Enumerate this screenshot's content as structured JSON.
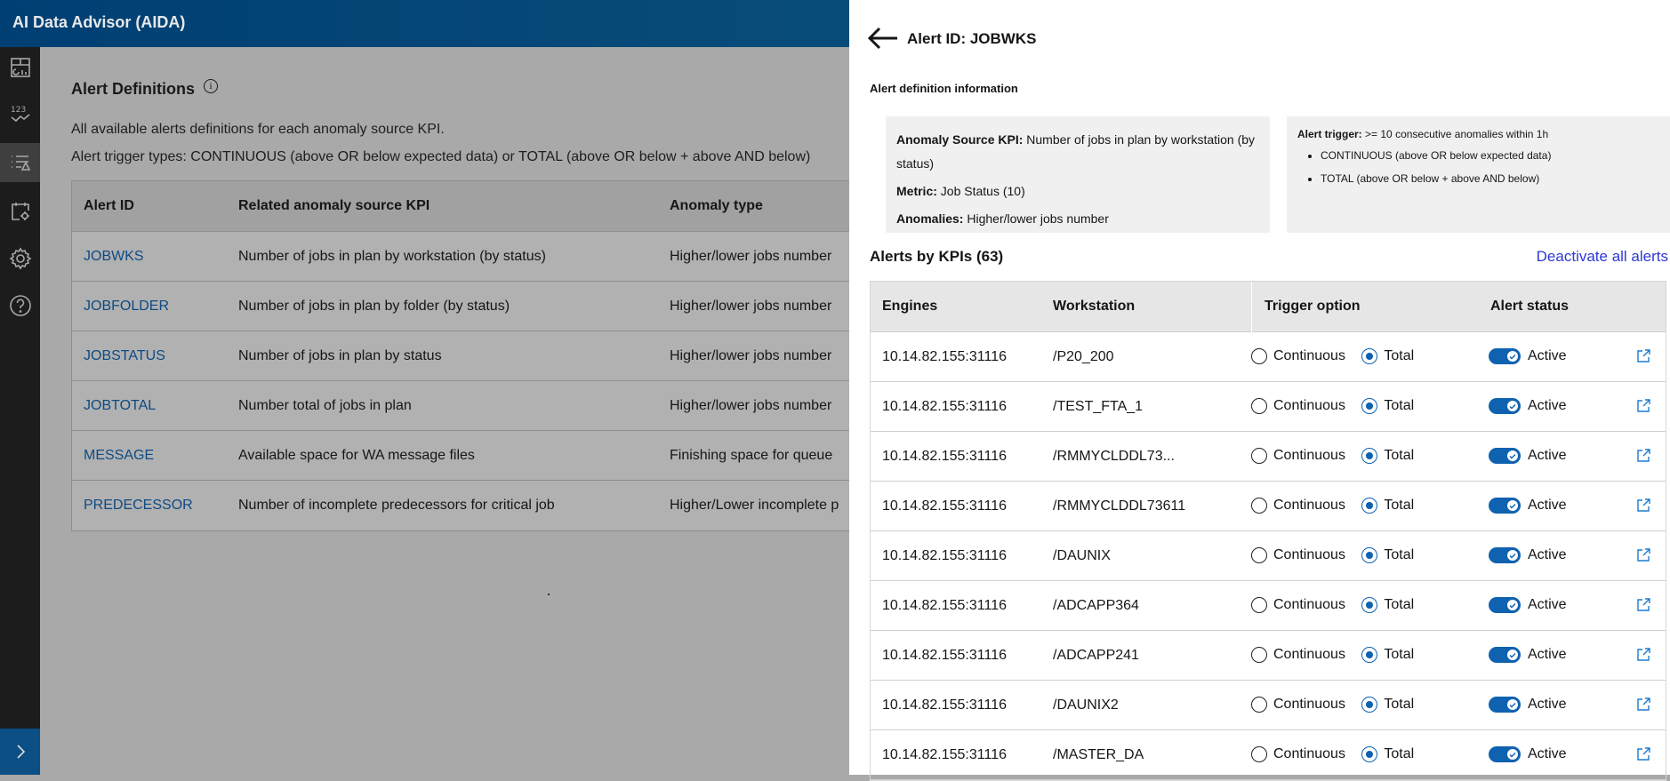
{
  "app": {
    "title": "AI Data Advisor (AIDA)"
  },
  "sidebar": {
    "items": [
      {
        "icon": "dashboard-icon"
      },
      {
        "icon": "kpi-trend-icon"
      },
      {
        "icon": "alert-definitions-icon",
        "active": true
      },
      {
        "icon": "calendar-settings-icon"
      },
      {
        "icon": "gear-icon"
      },
      {
        "icon": "help-icon"
      }
    ],
    "expand_icon": "chevron-right-icon"
  },
  "main": {
    "title": "Alert Definitions",
    "desc1": "All available alerts definitions for each anomaly source KPI.",
    "desc2": "Alert trigger types: CONTINUOUS (above OR below expected data) or TOTAL (above OR below + above AND below)",
    "columns": [
      "Alert ID",
      "Related anomaly source KPI",
      "Anomaly type"
    ],
    "rows": [
      {
        "id": "JOBWKS",
        "kpi": "Number of jobs in plan by workstation (by status)",
        "type": "Higher/lower jobs number"
      },
      {
        "id": "JOBFOLDER",
        "kpi": "Number of jobs in plan by folder (by status)",
        "type": "Higher/lower jobs number"
      },
      {
        "id": "JOBSTATUS",
        "kpi": "Number of jobs in plan by status",
        "type": "Higher/lower jobs number"
      },
      {
        "id": "JOBTOTAL",
        "kpi": "Number total of jobs in plan",
        "type": "Higher/lower jobs number"
      },
      {
        "id": "MESSAGE",
        "kpi": "Available space for WA message files",
        "type": "Finishing space for queue"
      },
      {
        "id": "PREDECESSOR",
        "kpi": "Number of incomplete predecessors for critical job",
        "type": "Higher/Lower incomplete p"
      }
    ]
  },
  "panel": {
    "title": "Alert ID: JOBWKS",
    "def_title": "Alert definition information",
    "kpi_label": "Anomaly Source KPI:",
    "kpi_value": "Number of jobs in plan by workstation (by status)",
    "metric_label": "Metric:",
    "metric_value": "Job Status (10)",
    "anomalies_label": "Anomalies:",
    "anomalies_value": "Higher/lower jobs number",
    "trigger_label": "Alert trigger:",
    "trigger_value": ">= 10 consecutive anomalies within 1h",
    "trigger_items": [
      "CONTINUOUS (above OR below expected data)",
      "TOTAL (above OR below + above AND below)"
    ],
    "alerts_title": "Alerts by KPIs (63)",
    "deactivate": "Deactivate all alerts",
    "columns": [
      "Engines",
      "Workstation",
      "Trigger option",
      "Alert status"
    ],
    "opt_continuous": "Continuous",
    "opt_total": "Total",
    "status": "Active",
    "accent": "#0f62b0",
    "rows": [
      {
        "engine": "10.14.82.155:31116",
        "ws": "/P20_200",
        "trigger": "Total",
        "active": true
      },
      {
        "engine": "10.14.82.155:31116",
        "ws": "/TEST_FTA_1",
        "trigger": "Total",
        "active": true
      },
      {
        "engine": "10.14.82.155:31116",
        "ws": "/RMMYCLDDL73...",
        "trigger": "Total",
        "active": true
      },
      {
        "engine": "10.14.82.155:31116",
        "ws": "/RMMYCLDDL73611",
        "trigger": "Total",
        "active": true
      },
      {
        "engine": "10.14.82.155:31116",
        "ws": "/DAUNIX",
        "trigger": "Total",
        "active": true
      },
      {
        "engine": "10.14.82.155:31116",
        "ws": "/ADCAPP364",
        "trigger": "Total",
        "active": true
      },
      {
        "engine": "10.14.82.155:31116",
        "ws": "/ADCAPP241",
        "trigger": "Total",
        "active": true
      },
      {
        "engine": "10.14.82.155:31116",
        "ws": "/DAUNIX2",
        "trigger": "Total",
        "active": true
      },
      {
        "engine": "10.14.82.155:31116",
        "ws": "/MASTER_DA",
        "trigger": "Total",
        "active": true
      }
    ]
  }
}
